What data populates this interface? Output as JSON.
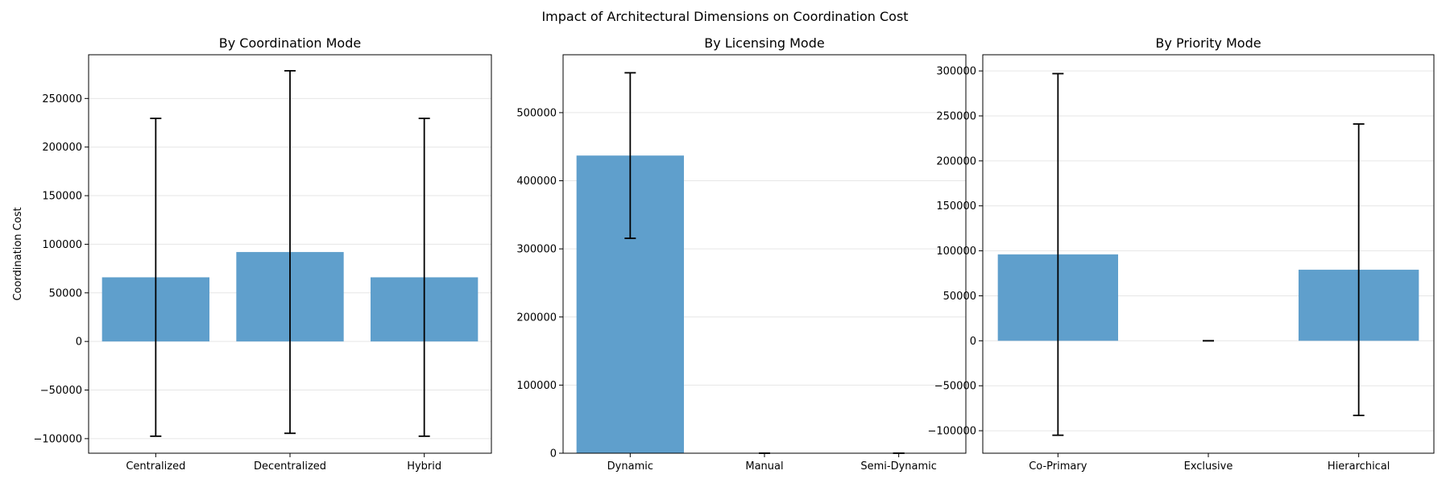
{
  "figure": {
    "suptitle": "Impact of Architectural Dimensions on Coordination Cost"
  },
  "colors": {
    "bar": "#5f9fcc",
    "errorbar": "#000000",
    "grid": "#e6e6e6"
  },
  "chart_data": [
    {
      "type": "bar",
      "title": "By Coordination Mode",
      "xlabel": "",
      "ylabel": "Coordination Cost",
      "categories": [
        "Centralized",
        "Decentralized",
        "Hybrid"
      ],
      "values": [
        66000,
        92000,
        66000
      ],
      "error": [
        163500,
        186500,
        163500
      ],
      "ylim": [
        -115000,
        295000
      ],
      "yticks": [
        -100000,
        -50000,
        0,
        50000,
        100000,
        150000,
        200000,
        250000
      ],
      "ytick_labels": [
        "−100000",
        "−50000",
        "0",
        "50000",
        "100000",
        "150000",
        "200000",
        "250000"
      ],
      "grid": "y"
    },
    {
      "type": "bar",
      "title": "By Licensing Mode",
      "xlabel": "",
      "ylabel": "",
      "categories": [
        "Dynamic",
        "Manual",
        "Semi-Dynamic"
      ],
      "values": [
        437000,
        0,
        0
      ],
      "error": [
        121500,
        0,
        0
      ],
      "ylim": [
        0,
        585000
      ],
      "yticks": [
        0,
        100000,
        200000,
        300000,
        400000,
        500000
      ],
      "ytick_labels": [
        "0",
        "100000",
        "200000",
        "300000",
        "400000",
        "500000"
      ],
      "grid": "y"
    },
    {
      "type": "bar",
      "title": "By Priority Mode",
      "xlabel": "",
      "ylabel": "",
      "categories": [
        "Co-Primary",
        "Exclusive",
        "Hierarchical"
      ],
      "values": [
        96000,
        0,
        79000
      ],
      "error": [
        201000,
        0,
        162000
      ],
      "ylim": [
        -125000,
        318000
      ],
      "yticks": [
        -100000,
        -50000,
        0,
        50000,
        100000,
        150000,
        200000,
        250000,
        300000
      ],
      "ytick_labels": [
        "−100000",
        "−50000",
        "0",
        "50000",
        "100000",
        "150000",
        "200000",
        "250000",
        "300000"
      ],
      "grid": "y"
    }
  ]
}
